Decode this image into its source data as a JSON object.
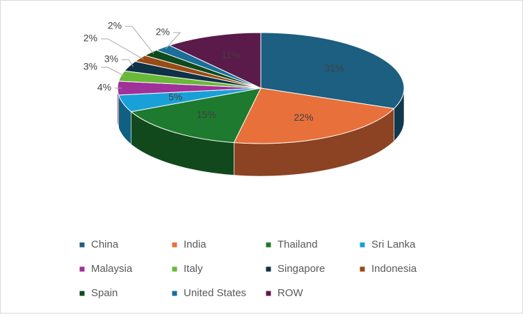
{
  "chart_data": {
    "type": "pie",
    "categories": [
      "China",
      "India",
      "Thailand",
      "Sri Lanka",
      "Malaysia",
      "Italy",
      "Singapore",
      "Indonesia",
      "Spain",
      "United States",
      "ROW"
    ],
    "values": [
      31,
      22,
      15,
      5,
      4,
      3,
      3,
      2,
      2,
      2,
      11
    ],
    "value_labels": [
      "31%",
      "22%",
      "15%",
      "5%",
      "4%",
      "3%",
      "3%",
      "2%",
      "2%",
      "2%",
      "11%"
    ],
    "colors": [
      "#1c5f80",
      "#e8703a",
      "#1e7a2e",
      "#1aa0d8",
      "#a0309a",
      "#6ab83a",
      "#0f3246",
      "#9a4a14",
      "#0f4a1e",
      "#1a6e9a",
      "#5a1a4a"
    ],
    "legend": "bottom"
  }
}
